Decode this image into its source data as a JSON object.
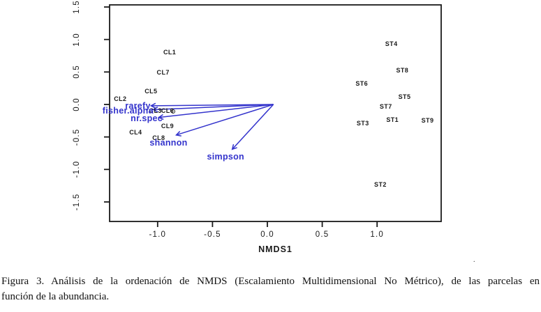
{
  "figure": {
    "caption_line1": "Figura 3. Análisis de la ordenación de NMDS (Escalamiento Multidimensional No Métrico), de las parcelas en",
    "caption_line2": "función de la abundancia.",
    "stray_mark": "."
  },
  "chart_data": {
    "type": "scatter",
    "title": "",
    "xlabel": "NMDS1",
    "ylabel": "",
    "xlim": [
      -1.44,
      1.58
    ],
    "ylim": [
      -1.8,
      1.53
    ],
    "grid": false,
    "legend": "none",
    "point_label_color": "#1a1a1a",
    "vector_color": "#3333cc",
    "x_ticks": [
      "-1.0",
      "-0.5",
      "0.0",
      "0.5",
      "1.0"
    ],
    "y_ticks": [
      "1.5",
      "1.0",
      "0.5",
      "0.0",
      "-0.5",
      "-1.0",
      "-1.5"
    ],
    "points": [
      {
        "label": "CL1",
        "x": -0.89,
        "y": 0.8
      },
      {
        "label": "CL2",
        "x": -1.34,
        "y": 0.09
      },
      {
        "label": "CL3",
        "x": -1.02,
        "y": -0.1
      },
      {
        "label": "CL4",
        "x": -1.2,
        "y": -0.43
      },
      {
        "label": "CL5",
        "x": -1.06,
        "y": 0.2
      },
      {
        "label": "CL6",
        "x": -0.91,
        "y": -0.1
      },
      {
        "label": "CL7",
        "x": -0.95,
        "y": 0.49
      },
      {
        "label": "CL8",
        "x": -0.99,
        "y": -0.51
      },
      {
        "label": "CL9",
        "x": -0.91,
        "y": -0.33
      },
      {
        "label": "ST1",
        "x": 1.14,
        "y": -0.24
      },
      {
        "label": "ST2",
        "x": 1.03,
        "y": -1.23
      },
      {
        "label": "ST3",
        "x": 0.87,
        "y": -0.29
      },
      {
        "label": "ST4",
        "x": 1.13,
        "y": 0.93
      },
      {
        "label": "ST5",
        "x": 1.25,
        "y": 0.12
      },
      {
        "label": "ST6",
        "x": 0.86,
        "y": 0.32
      },
      {
        "label": "ST7",
        "x": 1.08,
        "y": -0.03
      },
      {
        "label": "ST8",
        "x": 1.23,
        "y": 0.53
      },
      {
        "label": "ST9",
        "x": 1.46,
        "y": -0.25
      }
    ],
    "extra_point_marker": {
      "x": -0.86,
      "y": -0.11
    },
    "vectors": [
      {
        "label": "rarefy",
        "x1": 0.055,
        "y1": 0,
        "x2": -1.06,
        "y2": -0.02,
        "label_x": -1.18,
        "label_y": -0.02
      },
      {
        "label": "fisher.alpha",
        "x1": 0.055,
        "y1": 0,
        "x2": -1.04,
        "y2": -0.08,
        "label_x": -1.27,
        "label_y": -0.1
      },
      {
        "label": "nr.spec",
        "x1": 0.055,
        "y1": 0,
        "x2": -0.99,
        "y2": -0.2,
        "label_x": -1.1,
        "label_y": -0.21
      },
      {
        "label": "shannon",
        "x1": 0.055,
        "y1": 0,
        "x2": -0.83,
        "y2": -0.47,
        "label_x": -0.9,
        "label_y": -0.59
      },
      {
        "label": "simpson",
        "x1": 0.055,
        "y1": 0,
        "x2": -0.32,
        "y2": -0.69,
        "label_x": -0.38,
        "label_y": -0.8
      }
    ]
  }
}
